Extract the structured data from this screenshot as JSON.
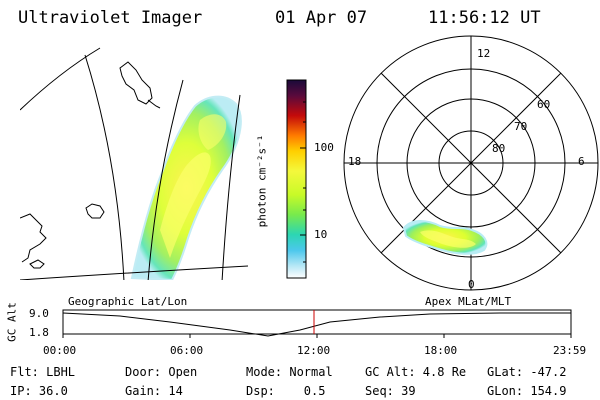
{
  "header": {
    "title": "Ultraviolet Imager",
    "date": "01 Apr 07",
    "time": "11:56:12 UT"
  },
  "geo_panel": {
    "caption": "Geographic Lat/Lon"
  },
  "polar_panel": {
    "caption": "Apex MLat/MLT",
    "mlt_labels": {
      "top": "12",
      "left": "18",
      "right": "6",
      "bottom": "0"
    },
    "mlat_labels": [
      "60",
      "70",
      "80"
    ]
  },
  "colorbar": {
    "unit_label": "photon cm⁻²s⁻¹",
    "ticks": [
      "100",
      "10"
    ],
    "colors": [
      "#1a0a3a",
      "#3a0a46",
      "#5a0a3c",
      "#8a0a1a",
      "#c40a0a",
      "#f03c00",
      "#ff7a00",
      "#ffb400",
      "#ffe000",
      "#fff24a",
      "#d8ff28",
      "#9cf03c",
      "#58e66e",
      "#2cd6b2",
      "#3cc8e8",
      "#9ae0f4",
      "#ffffff"
    ]
  },
  "altitude_plot": {
    "ylabel": "GC Alt",
    "ymax": "9.0",
    "ymin": "1.8",
    "xticks": [
      "00:00",
      "06:00",
      "12:00",
      "18:00",
      "23:59"
    ],
    "marker_color": "#cc0000"
  },
  "info": {
    "row1": {
      "flt": "Flt: LBHL",
      "door": "Door: Open",
      "mode": "Mode: Normal",
      "gcalt": "GC Alt: 4.8 Re",
      "glat": "GLat: -47.2"
    },
    "row2": {
      "ip": "IP: 36.0",
      "gain": "Gain: 14",
      "dsp": "Dsp:    0.5",
      "seq": "Seq: 39",
      "glon": "GLon: 154.9"
    }
  }
}
